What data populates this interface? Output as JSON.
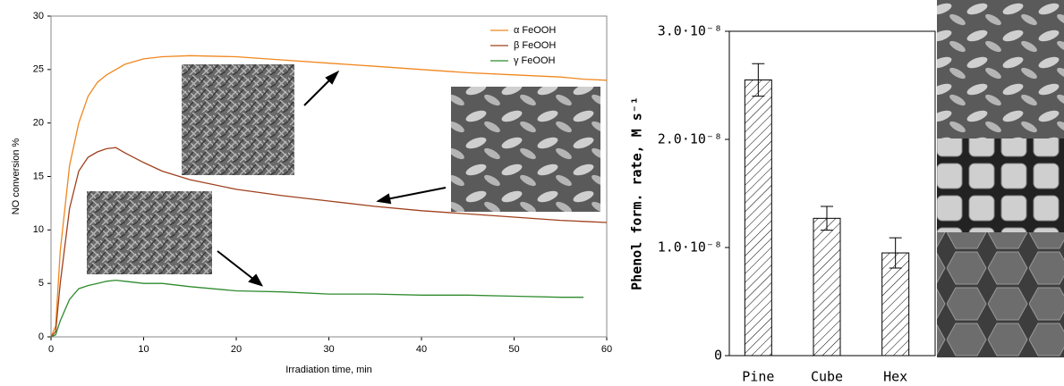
{
  "chart_data": [
    {
      "type": "line",
      "xlabel": "Irradiation time, min",
      "ylabel": "NO conversion %",
      "x": [
        0,
        0.5,
        1,
        2,
        3,
        4,
        5,
        6,
        7,
        8,
        10,
        12,
        15,
        20,
        25,
        30,
        35,
        40,
        45,
        50,
        55,
        57.5,
        60
      ],
      "series": [
        {
          "name": "α FeOOH",
          "color": "#f0871e",
          "values": [
            0,
            1,
            8,
            16,
            20,
            22.5,
            23.8,
            24.5,
            25,
            25.5,
            26,
            26.2,
            26.3,
            26.2,
            25.9,
            25.6,
            25.3,
            25,
            24.7,
            24.5,
            24.3,
            24.1,
            24
          ]
        },
        {
          "name": "β FeOOH",
          "color": "#a0401e",
          "values": [
            0,
            0.5,
            5,
            12,
            15.5,
            16.8,
            17.3,
            17.6,
            17.7,
            17.2,
            16.3,
            15.5,
            14.7,
            13.8,
            13.2,
            12.7,
            12.2,
            11.8,
            11.5,
            11.2,
            10.9,
            10.8,
            10.7
          ]
        },
        {
          "name": "γ FeOOH",
          "color": "#2e8b2e",
          "values": [
            0,
            0.2,
            1.5,
            3.5,
            4.5,
            4.8,
            5,
            5.2,
            5.3,
            5.2,
            5,
            5,
            4.7,
            4.3,
            4.2,
            4,
            4,
            3.9,
            3.9,
            3.8,
            3.7,
            3.7,
            null
          ]
        }
      ],
      "xlim": [
        0,
        60
      ],
      "xticks": [
        0,
        10,
        20,
        30,
        40,
        50,
        60
      ],
      "ylim": [
        0,
        30
      ],
      "yticks": [
        0,
        5,
        10,
        15,
        20,
        25,
        30
      ],
      "legend": "top-right"
    },
    {
      "type": "bar",
      "ylabel": "Phenol form. rate, M s⁻¹",
      "categories": [
        "Pine",
        "Cube",
        "Hex"
      ],
      "values": [
        2.55e-08,
        1.27e-08,
        9.5e-09
      ],
      "errors": [
        1.5e-09,
        1.1e-09,
        1.4e-09
      ],
      "color": "#ffffff",
      "ylim": [
        0,
        3e-08
      ],
      "yticks": [
        0,
        {
          "value": 1e-08,
          "label": "1.0·10⁻⁸"
        },
        {
          "value": 2e-08,
          "label": "2.0·10⁻⁸"
        },
        {
          "value": 3e-08,
          "label": "3.0·10⁻⁸"
        }
      ]
    }
  ]
}
